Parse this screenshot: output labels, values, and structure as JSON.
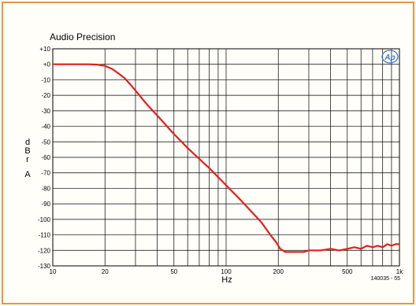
{
  "chart_data": {
    "type": "line",
    "title": "Audio Precision",
    "ylabel_lines": [
      "d",
      "B",
      "r",
      "A"
    ],
    "xlabel": "Hz",
    "figure_code": "140035 - 55",
    "logo_text": "Ap",
    "x_scale": "log",
    "xlim": [
      10,
      1000
    ],
    "ylim": [
      -130,
      10
    ],
    "grid": true,
    "y_ticks": [
      {
        "v": 10,
        "label": "+10"
      },
      {
        "v": 0,
        "label": "+0"
      },
      {
        "v": -10,
        "label": "-10"
      },
      {
        "v": -20,
        "label": "-20"
      },
      {
        "v": -30,
        "label": "-30"
      },
      {
        "v": -40,
        "label": "-40"
      },
      {
        "v": -50,
        "label": "-50"
      },
      {
        "v": -60,
        "label": "-60"
      },
      {
        "v": -70,
        "label": "-70"
      },
      {
        "v": -80,
        "label": "-80"
      },
      {
        "v": -90,
        "label": "-90"
      },
      {
        "v": -100,
        "label": "-100"
      },
      {
        "v": -110,
        "label": "-110"
      },
      {
        "v": -120,
        "label": "-120"
      },
      {
        "v": -130,
        "label": "-130"
      }
    ],
    "x_ticks": [
      {
        "v": 10,
        "label": "10"
      },
      {
        "v": 20,
        "label": "20"
      },
      {
        "v": 50,
        "label": "50"
      },
      {
        "v": 100,
        "label": "100"
      },
      {
        "v": 200,
        "label": "200"
      },
      {
        "v": 500,
        "label": "500"
      },
      {
        "v": 1000,
        "label": "1k"
      }
    ],
    "x_grid": [
      10,
      20,
      30,
      40,
      50,
      60,
      70,
      80,
      90,
      100,
      200,
      300,
      400,
      500,
      600,
      700,
      800,
      900,
      1000
    ],
    "series": [
      {
        "color": "#e02020",
        "points": [
          [
            10,
            0
          ],
          [
            12,
            0
          ],
          [
            14,
            0
          ],
          [
            16,
            0
          ],
          [
            18,
            -0.2
          ],
          [
            20,
            -1
          ],
          [
            22,
            -3
          ],
          [
            24,
            -6
          ],
          [
            26,
            -9
          ],
          [
            28,
            -13
          ],
          [
            30,
            -17
          ],
          [
            35,
            -26
          ],
          [
            40,
            -33
          ],
          [
            50,
            -45
          ],
          [
            60,
            -54
          ],
          [
            70,
            -61
          ],
          [
            80,
            -67
          ],
          [
            100,
            -78
          ],
          [
            120,
            -87
          ],
          [
            140,
            -95
          ],
          [
            160,
            -102
          ],
          [
            180,
            -110
          ],
          [
            195,
            -115
          ],
          [
            205,
            -119
          ],
          [
            220,
            -121
          ],
          [
            240,
            -121
          ],
          [
            260,
            -121
          ],
          [
            280,
            -121
          ],
          [
            300,
            -120
          ],
          [
            350,
            -120
          ],
          [
            400,
            -119
          ],
          [
            450,
            -120
          ],
          [
            500,
            -119
          ],
          [
            550,
            -118
          ],
          [
            600,
            -119
          ],
          [
            650,
            -117
          ],
          [
            700,
            -118
          ],
          [
            750,
            -117
          ],
          [
            800,
            -118
          ],
          [
            850,
            -116
          ],
          [
            900,
            -117
          ],
          [
            950,
            -116
          ],
          [
            1000,
            -116
          ]
        ]
      }
    ]
  }
}
